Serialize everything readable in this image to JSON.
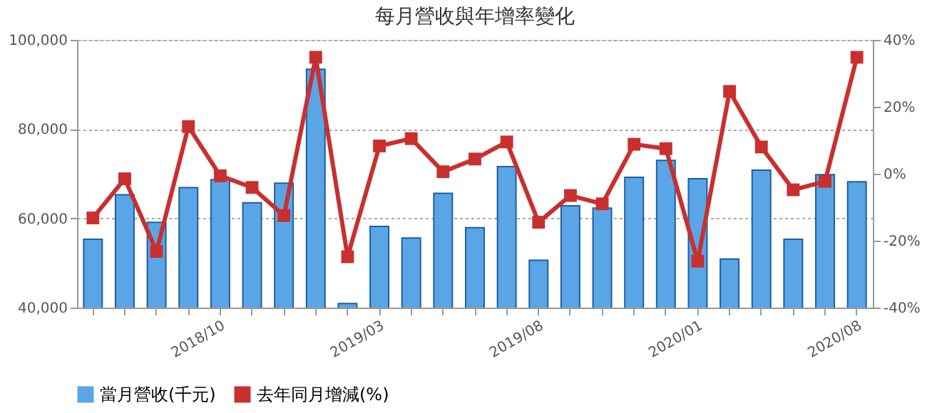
{
  "chart_data": {
    "type": "bar",
    "title": "每月營收與年增率變化",
    "categories": [
      null,
      null,
      null,
      null,
      "2018/10",
      null,
      null,
      null,
      null,
      "2019/03",
      null,
      null,
      null,
      null,
      "2019/08",
      null,
      null,
      null,
      null,
      "2020/01",
      null,
      null,
      null,
      null,
      "2020/08"
    ],
    "series": [
      {
        "name": "當月營收(千元)",
        "color": "#5aa5e6",
        "values": [
          55300,
          65300,
          59100,
          66900,
          68700,
          63500,
          67900,
          93400,
          40900,
          58200,
          55600,
          65600,
          57900,
          71600,
          50600,
          62800,
          62300,
          69200,
          73000,
          68900,
          50900,
          70800,
          55300,
          69800,
          68200
        ]
      },
      {
        "name": "去年同月增減(%)",
        "type": "line",
        "axis": "y2",
        "color": "#c8302f",
        "values": [
          -13.2,
          -1.5,
          -23.2,
          14.1,
          -0.6,
          -4.1,
          -12.5,
          34.8,
          -24.8,
          8.3,
          10.5,
          0.6,
          4.4,
          9.5,
          -14.5,
          -6.5,
          -9.0,
          8.8,
          7.5,
          -26.1,
          24.6,
          8.0,
          -4.8,
          -2.3,
          34.8
        ]
      }
    ],
    "ylim": [
      40000,
      100000
    ],
    "yticks": [
      {
        "value": 40000,
        "label": "40,000"
      },
      {
        "value": 60000,
        "label": "60,000"
      },
      {
        "value": 80000,
        "label": "80,000"
      },
      {
        "value": 100000,
        "label": "100,000"
      }
    ],
    "y2lim": [
      -40,
      40
    ],
    "y2ticks": [
      {
        "value": -40,
        "label": "-40%"
      },
      {
        "value": -20,
        "label": "-20%"
      },
      {
        "value": 0,
        "label": "0%"
      },
      {
        "value": 20,
        "label": "20%"
      },
      {
        "value": 40,
        "label": "40%"
      }
    ],
    "grid": "y",
    "legend": "bottom",
    "marker": "square",
    "line_style": "solid"
  }
}
